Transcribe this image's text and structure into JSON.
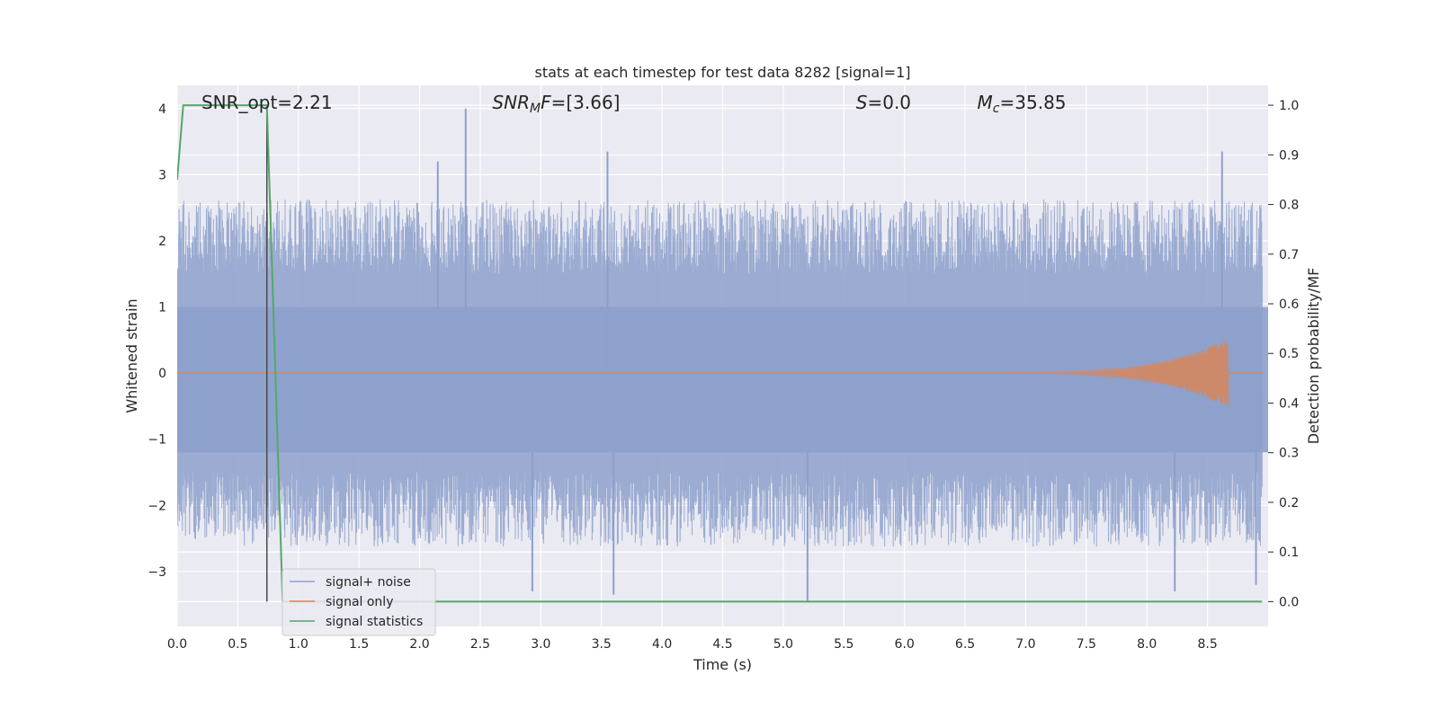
{
  "chart_data": {
    "type": "line",
    "title": "stats at each timestep for test data 8282 [signal=1]",
    "xlabel": "Time (s)",
    "ylabel_left": "Whitened strain",
    "ylabel_right": "Detection probability/MF",
    "xlim": [
      0.0,
      9.0
    ],
    "ylim_left": [
      -3.83,
      4.35
    ],
    "ylim_right": [
      -0.05,
      1.04
    ],
    "xticks": [
      "0.0",
      "0.5",
      "1.0",
      "1.5",
      "2.0",
      "2.5",
      "3.0",
      "3.5",
      "4.0",
      "4.5",
      "5.0",
      "5.5",
      "6.0",
      "6.5",
      "7.0",
      "7.5",
      "8.0",
      "8.5"
    ],
    "yticks_left": [
      "−3",
      "−2",
      "−1",
      "0",
      "1",
      "2",
      "3",
      "4"
    ],
    "yticks_right": [
      "0.0",
      "0.1",
      "0.2",
      "0.3",
      "0.4",
      "0.5",
      "0.6",
      "0.7",
      "0.8",
      "0.9",
      "1.0"
    ],
    "grid": true,
    "legend_position": "lower-left",
    "annotations": [
      {
        "prefix": "SNR_opt=",
        "value": "2.21",
        "x": 0.2
      },
      {
        "prefix_main": "SNR",
        "prefix_sub": "M",
        "prefix_rest": "F=",
        "value": "[3.66]",
        "x": 2.6
      },
      {
        "prefix_main": "S",
        "prefix_rest": "=",
        "value": "0.0",
        "x": 5.6
      },
      {
        "prefix_main": "M",
        "prefix_sub": "c",
        "prefix_rest": "=",
        "value": "35.85",
        "x": 6.6
      }
    ],
    "series": [
      {
        "name": "signal+ noise",
        "color": "#8da0cb",
        "axis": "left",
        "description_values": {
          "envelope_low": -2.5,
          "envelope_high": 2.5,
          "peak_max": 4.0,
          "peak_min": -3.45
        },
        "notable_peaks": [
          {
            "x": 2.38,
            "y": 4.0
          },
          {
            "x": 8.62,
            "y": 3.35
          },
          {
            "x": 3.55,
            "y": 3.35
          },
          {
            "x": 2.15,
            "y": 3.2
          },
          {
            "x": 5.2,
            "y": -3.45
          },
          {
            "x": 3.6,
            "y": -3.35
          },
          {
            "x": 8.23,
            "y": -3.3
          },
          {
            "x": 2.93,
            "y": -3.3
          },
          {
            "x": 8.9,
            "y": -3.2
          }
        ]
      },
      {
        "name": "signal only",
        "color": "#dd8452",
        "axis": "left",
        "chirp": {
          "start": 6.5,
          "end": 8.67,
          "peak_amplitude": 0.5
        }
      },
      {
        "name": "signal statistics",
        "color": "#55a868",
        "axis": "right",
        "x": [
          0.0,
          0.05,
          0.1,
          0.2,
          0.4,
          0.6,
          0.74,
          0.87,
          0.9,
          2.0,
          4.0,
          6.0,
          8.0,
          8.95
        ],
        "y": [
          0.85,
          1.0,
          1.0,
          1.0,
          1.0,
          1.0,
          1.0,
          0.0,
          0.0,
          0.0,
          0.0,
          0.0,
          0.0,
          0.0
        ]
      }
    ],
    "vline": {
      "x": 0.74,
      "color": "#4a4a4a"
    }
  }
}
